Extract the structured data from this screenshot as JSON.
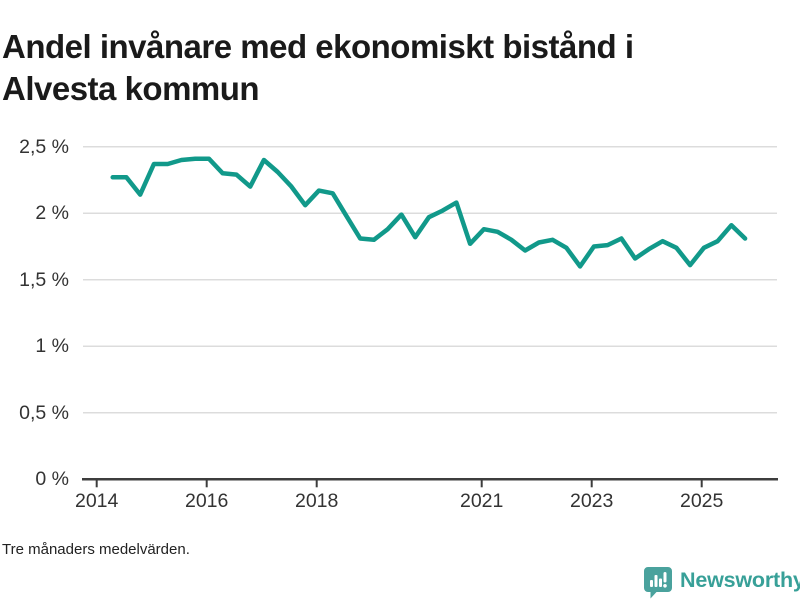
{
  "title": "Andel invånare med ekonomiskt bistånd i\nAlvesta kommun",
  "footnote": "Tre månaders medelvärden.",
  "branding": {
    "name": "Newsworthy"
  },
  "colors": {
    "line": "#11998a",
    "grid": "#dcdcdc",
    "axis": "#3d3d3d",
    "tick_text": "#333333",
    "title_text": "#1a1a1a",
    "logo_icon": "#4aa29d",
    "logo_text": "#38a098"
  },
  "chart_data": {
    "type": "line",
    "title": "Andel invånare med ekonomiskt bistånd i Alvesta kommun",
    "footnote": "Tre månaders medelvärden.",
    "unit": "%",
    "decimal_separator": ",",
    "grid": true,
    "legend": "none",
    "xlim": [
      2013.75,
      2026.37
    ],
    "ylim": [
      0,
      2.5
    ],
    "x_ticks": [
      {
        "value": 2014,
        "label": "2014"
      },
      {
        "value": 2016,
        "label": "2016"
      },
      {
        "value": 2018,
        "label": "2018"
      },
      {
        "value": 2021,
        "label": "2021"
      },
      {
        "value": 2023,
        "label": "2023"
      },
      {
        "value": 2025,
        "label": "2025"
      }
    ],
    "y_ticks": [
      {
        "value": 0,
        "label": "0 %"
      },
      {
        "value": 0.5,
        "label": "0,5 %"
      },
      {
        "value": 1,
        "label": "1 %"
      },
      {
        "value": 1.5,
        "label": "1,5 %"
      },
      {
        "value": 2,
        "label": "2 %"
      },
      {
        "value": 2.5,
        "label": "2,5 %"
      }
    ],
    "series": [
      {
        "name": "Andel invånare med ekonomiskt bistånd",
        "color": "#11998a",
        "x": [
          2014.29,
          2014.54,
          2014.79,
          2015.04,
          2015.29,
          2015.54,
          2015.79,
          2016.04,
          2016.29,
          2016.54,
          2016.79,
          2017.04,
          2017.29,
          2017.54,
          2017.79,
          2018.04,
          2018.29,
          2018.54,
          2018.79,
          2019.04,
          2019.29,
          2019.54,
          2019.79,
          2020.04,
          2020.29,
          2020.54,
          2020.79,
          2021.04,
          2021.29,
          2021.54,
          2021.79,
          2022.04,
          2022.29,
          2022.54,
          2022.79,
          2023.04,
          2023.29,
          2023.54,
          2023.79,
          2024.04,
          2024.29,
          2024.54,
          2024.79,
          2025.04,
          2025.29,
          2025.54,
          2025.79
        ],
        "y": [
          2.27,
          2.27,
          2.14,
          2.37,
          2.37,
          2.4,
          2.41,
          2.41,
          2.3,
          2.29,
          2.2,
          2.4,
          2.31,
          2.2,
          2.06,
          2.17,
          2.15,
          1.98,
          1.81,
          1.8,
          1.88,
          1.99,
          1.82,
          1.97,
          2.02,
          2.08,
          1.77,
          1.88,
          1.86,
          1.8,
          1.72,
          1.78,
          1.8,
          1.74,
          1.6,
          1.75,
          1.76,
          1.81,
          1.66,
          1.73,
          1.79,
          1.74,
          1.61,
          1.74,
          1.79,
          1.91,
          1.81
        ]
      }
    ]
  }
}
